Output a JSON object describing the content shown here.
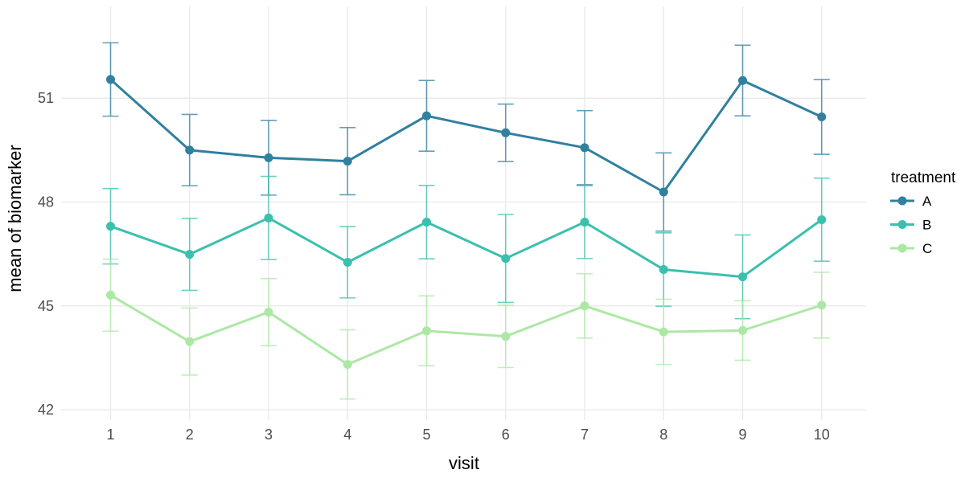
{
  "chart_data": {
    "type": "line",
    "title": "",
    "xlabel": "visit",
    "ylabel": "mean of biomarker",
    "legend_title": "treatment",
    "legend_position": "right",
    "grid": "major-only",
    "background_color": "#ffffff",
    "gridline_color": "#e9e9e9",
    "tick_label_color": "#4d4d4d",
    "x_ticks": [
      1,
      2,
      3,
      4,
      5,
      6,
      7,
      8,
      9,
      10
    ],
    "y_ticks": [
      42,
      45,
      48,
      51
    ],
    "xlim": [
      1,
      10
    ],
    "ylim": [
      41.7,
      53.65
    ],
    "error_bars": true,
    "x": [
      1,
      2,
      3,
      4,
      5,
      6,
      7,
      8,
      9,
      10
    ],
    "series": [
      {
        "name": "A",
        "color": "#30809f",
        "values": [
          51.54,
          49.5,
          49.28,
          49.18,
          50.49,
          50.0,
          49.57,
          48.29,
          51.51,
          50.46
        ],
        "errors": [
          1.06,
          1.03,
          1.08,
          0.97,
          1.02,
          0.83,
          1.07,
          1.13,
          1.02,
          1.08
        ]
      },
      {
        "name": "B",
        "color": "#3ac0ad",
        "values": [
          47.3,
          46.49,
          47.54,
          46.26,
          47.42,
          46.37,
          47.42,
          46.05,
          45.84,
          47.49
        ],
        "errors": [
          1.09,
          1.04,
          1.2,
          1.03,
          1.06,
          1.27,
          1.05,
          1.06,
          1.21,
          1.2
        ]
      },
      {
        "name": "C",
        "color": "#ace8a4",
        "values": [
          45.31,
          43.97,
          44.82,
          43.31,
          44.28,
          44.12,
          45.0,
          44.25,
          44.29,
          45.02
        ],
        "errors": [
          1.04,
          0.97,
          0.97,
          1.0,
          1.01,
          0.9,
          0.93,
          0.94,
          0.86,
          0.95
        ]
      }
    ]
  }
}
